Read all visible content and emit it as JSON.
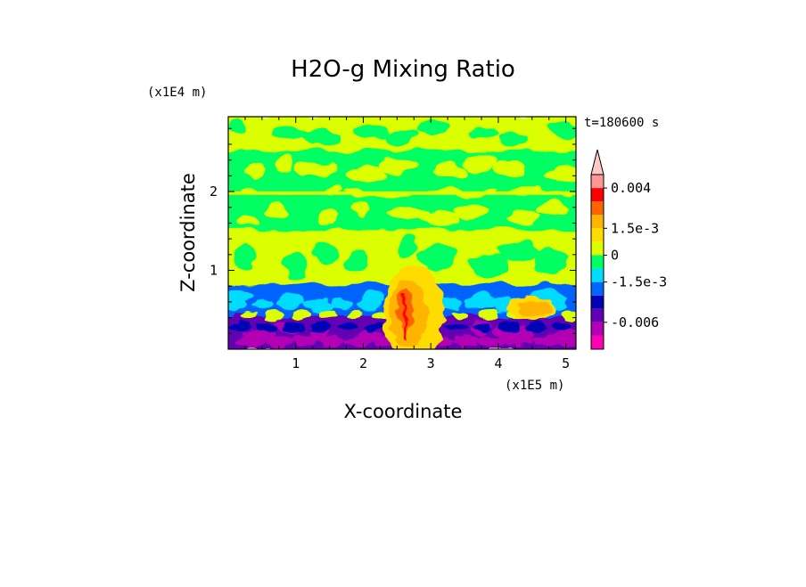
{
  "chart_data": {
    "type": "heatmap",
    "title": "H2O-g Mixing Ratio",
    "xlabel": "X-coordinate",
    "ylabel": "Z-coordinate",
    "x_unit": "(x1E5 m)",
    "y_unit": "(x1E4 m)",
    "time_label": "t=180600 s",
    "xlim": [
      0,
      5.15
    ],
    "ylim": [
      0,
      2.95
    ],
    "x_ticks": [
      1,
      2,
      3,
      4,
      5
    ],
    "x_tick_labels": [
      "1",
      "2",
      "3",
      "4",
      "5"
    ],
    "y_ticks": [
      1,
      2
    ],
    "y_tick_labels": [
      "1",
      "2"
    ],
    "colorbar": {
      "colors": [
        "#ff00b4",
        "#b400b4",
        "#6400b4",
        "#0000b4",
        "#0064ff",
        "#00dcff",
        "#00ff64",
        "#dcff00",
        "#ffdc00",
        "#ffb400",
        "#ff6400",
        "#ff0000",
        "#ff9696",
        "#ffc8c8"
      ],
      "labels": [
        "-0.006",
        "-1.5e-3",
        "0",
        "1.5e-3",
        "0.004"
      ]
    },
    "field_bands": [
      {
        "z_range": [
          2.5,
          2.95
        ],
        "dominant": "dcff00",
        "secondary": "00ff64"
      },
      {
        "z_range": [
          2.05,
          2.5
        ],
        "dominant": "00ff64",
        "secondary": "dcff00"
      },
      {
        "z_range": [
          1.9,
          2.05
        ],
        "dominant": "00ff64",
        "secondary": "dcff00"
      },
      {
        "z_range": [
          1.5,
          1.9
        ],
        "dominant": "00ff64",
        "secondary": "dcff00"
      },
      {
        "z_range": [
          0.8,
          1.5
        ],
        "dominant": "dcff00",
        "secondary": "00ff64"
      },
      {
        "z_range": [
          0.4,
          0.8
        ],
        "dominant": "0064ff",
        "secondary": "00dcff"
      },
      {
        "z_range": [
          0.0,
          0.4
        ],
        "dominant": "6400b4",
        "secondary": "b400b4"
      }
    ],
    "features": [
      {
        "type": "moist-plume",
        "x_center": 2.75,
        "z_top": 1.0,
        "max_color": "ff0000"
      },
      {
        "type": "moist-blob",
        "x_center": 4.5,
        "z_center": 0.52,
        "color": "ffb400"
      }
    ]
  }
}
